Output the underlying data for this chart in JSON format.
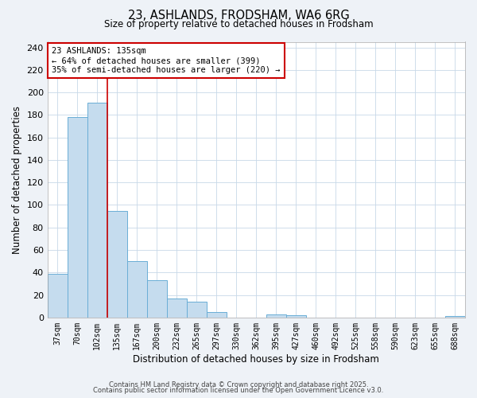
{
  "title1": "23, ASHLANDS, FRODSHAM, WA6 6RG",
  "title2": "Size of property relative to detached houses in Frodsham",
  "xlabel": "Distribution of detached houses by size in Frodsham",
  "ylabel": "Number of detached properties",
  "bin_labels": [
    "37sqm",
    "70sqm",
    "102sqm",
    "135sqm",
    "167sqm",
    "200sqm",
    "232sqm",
    "265sqm",
    "297sqm",
    "330sqm",
    "362sqm",
    "395sqm",
    "427sqm",
    "460sqm",
    "492sqm",
    "525sqm",
    "558sqm",
    "590sqm",
    "623sqm",
    "655sqm",
    "688sqm"
  ],
  "bar_heights": [
    39,
    178,
    191,
    95,
    50,
    33,
    17,
    14,
    5,
    0,
    0,
    3,
    2,
    0,
    0,
    0,
    0,
    0,
    0,
    0,
    1
  ],
  "bar_color": "#c5dcee",
  "bar_edge_color": "#6aaed6",
  "vline_x_idx": 3,
  "vline_color": "#cc0000",
  "annotation_line1": "23 ASHLANDS: 135sqm",
  "annotation_line2": "← 64% of detached houses are smaller (399)",
  "annotation_line3": "35% of semi-detached houses are larger (220) →",
  "annotation_box_color": "#cc0000",
  "annotation_box_bg": "#ffffff",
  "ylim": [
    0,
    245
  ],
  "yticks": [
    0,
    20,
    40,
    60,
    80,
    100,
    120,
    140,
    160,
    180,
    200,
    220,
    240
  ],
  "footer1": "Contains HM Land Registry data © Crown copyright and database right 2025.",
  "footer2": "Contains public sector information licensed under the Open Government Licence v3.0.",
  "bg_color": "#eef2f7",
  "plot_bg_color": "#ffffff",
  "grid_color": "#c8d8e8"
}
